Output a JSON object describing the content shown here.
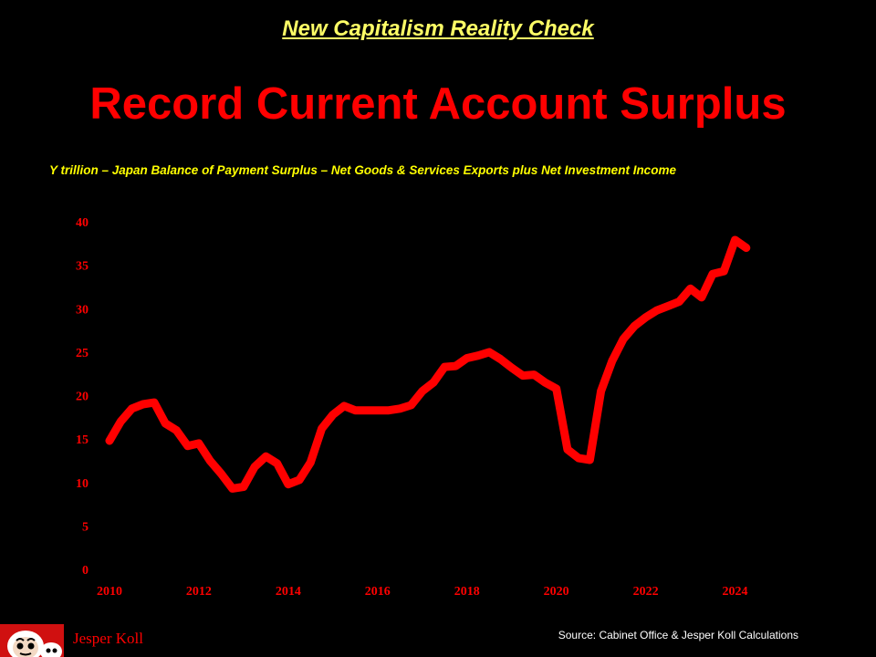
{
  "slide": {
    "kicker": "New Capitalism Reality Check",
    "headline": "Record Current Account Surplus",
    "subtitle": "Y trillion – Japan Balance of Payment Surplus – Net Goods & Services Exports plus Net Investment Income"
  },
  "footer": {
    "author": "Jesper Koll",
    "source": "Source: Cabinet Office & Jesper Koll Calculations",
    "logo_icon": "daruma-icon"
  },
  "chart_data": {
    "type": "line",
    "xlim": [
      2010,
      2024.5
    ],
    "ylim": [
      0,
      40
    ],
    "x_ticks": [
      "2010",
      "2012",
      "2014",
      "2016",
      "2018",
      "2020",
      "2022",
      "2024"
    ],
    "y_ticks": [
      "0",
      "5",
      "10",
      "15",
      "20",
      "25",
      "30",
      "35",
      "40"
    ],
    "grid": false,
    "line_color": "#ff0000",
    "series": [
      {
        "x": [
          2010,
          2010.25,
          2010.5,
          2010.75,
          2011,
          2011.25,
          2011.5,
          2011.75,
          2012,
          2012.25,
          2012.5,
          2012.75,
          2013,
          2013.25,
          2013.5,
          2013.75,
          2014,
          2014.25,
          2014.5,
          2014.75,
          2015,
          2015.25,
          2015.5,
          2015.75,
          2016,
          2016.25,
          2016.5,
          2016.75,
          2017,
          2017.25,
          2017.5,
          2017.75,
          2018,
          2018.25,
          2018.5,
          2018.75,
          2019,
          2019.25,
          2019.5,
          2019.75,
          2020,
          2020.25,
          2020.5,
          2020.75,
          2021,
          2021.25,
          2021.5,
          2021.75,
          2022,
          2022.25,
          2022.5,
          2022.75,
          2023,
          2023.25,
          2023.5,
          2023.75,
          2024,
          2024.25
        ],
        "y": [
          14.8,
          17.0,
          18.5,
          19.0,
          19.2,
          16.8,
          16.0,
          14.2,
          14.5,
          12.5,
          11.0,
          9.3,
          9.5,
          11.8,
          13.0,
          12.2,
          9.8,
          10.3,
          12.3,
          16.2,
          17.8,
          18.8,
          18.3,
          18.3,
          18.3,
          18.3,
          18.5,
          18.9,
          20.5,
          21.5,
          23.3,
          23.4,
          24.3,
          24.6,
          25.0,
          24.2,
          23.2,
          22.3,
          22.4,
          21.5,
          20.8,
          13.8,
          12.8,
          12.6,
          20.5,
          24.0,
          26.5,
          28.0,
          29.0,
          29.8,
          30.3,
          30.8,
          32.3,
          31.3,
          34.0,
          34.3,
          37.9,
          37.0
        ]
      }
    ]
  }
}
